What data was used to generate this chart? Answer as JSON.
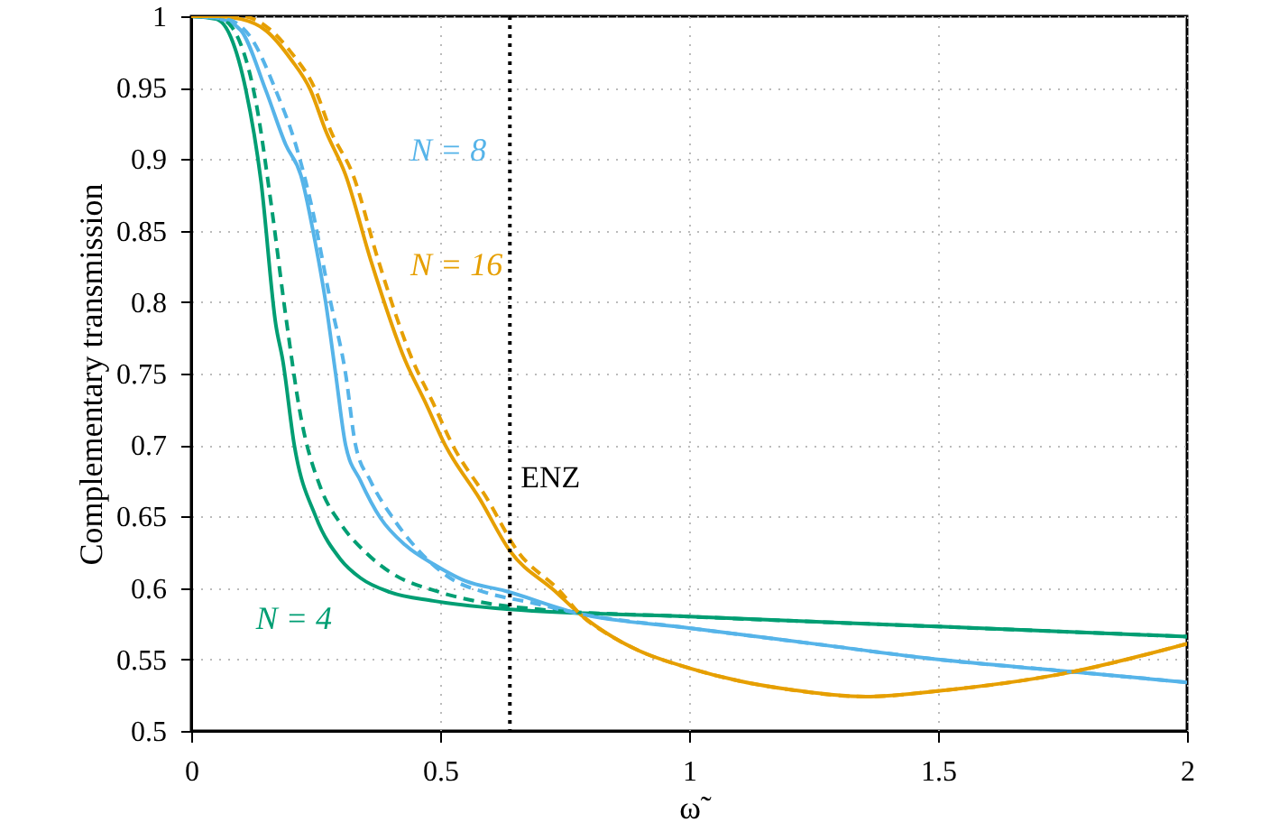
{
  "chart_data": {
    "type": "line",
    "xlabel": "ω̃",
    "ylabel": "Complementary transmission",
    "xlim": [
      0,
      2
    ],
    "ylim": [
      0.5,
      1
    ],
    "xticks": [
      0,
      0.5,
      1,
      1.5,
      2
    ],
    "yticks": [
      0.5,
      0.55,
      0.6,
      0.65,
      0.7,
      0.75,
      0.8,
      0.85,
      0.9,
      0.95,
      1
    ],
    "grid": true,
    "marker": "none",
    "series": [
      {
        "name": "N = 4",
        "color": "#009e73",
        "line_style": "solid",
        "x": [
          0,
          0.05,
          0.08,
          0.11,
          0.14,
          0.17,
          0.184,
          0.207,
          0.25,
          0.3,
          0.34,
          0.4,
          0.486,
          0.64,
          1,
          1.5,
          2
        ],
        "values": [
          1,
          0.998,
          0.985,
          0.948,
          0.885,
          0.784,
          0.759,
          0.7,
          0.65,
          0.62,
          0.607,
          0.597,
          0.591,
          0.585,
          0.58,
          0.573,
          0.566
        ]
      },
      {
        "name": "N = 8",
        "color": "#56b4e9",
        "line_style": "solid",
        "x": [
          0,
          0.06,
          0.1,
          0.15,
          0.19,
          0.22,
          0.25,
          0.27,
          0.29,
          0.31,
          0.34,
          0.38,
          0.43,
          0.49,
          0.55,
          0.63,
          0.78,
          1,
          1.25,
          1.5,
          1.75,
          2
        ],
        "values": [
          1,
          0.998,
          0.99,
          0.948,
          0.91,
          0.889,
          0.84,
          0.8,
          0.75,
          0.7,
          0.675,
          0.649,
          0.63,
          0.616,
          0.605,
          0.598,
          0.582,
          0.572,
          0.561,
          0.55,
          0.542,
          0.534
        ]
      },
      {
        "name": "N = 16",
        "color": "#e69f00",
        "line_style": "solid",
        "x": [
          0,
          0.05,
          0.1,
          0.15,
          0.2,
          0.24,
          0.27,
          0.31,
          0.36,
          0.43,
          0.47,
          0.51,
          0.58,
          0.64,
          0.73,
          0.78,
          0.85,
          0.9,
          1,
          1.1,
          1.2,
          1.355,
          1.5,
          1.75,
          2
        ],
        "values": [
          1,
          1,
          0.998,
          0.99,
          0.97,
          0.948,
          0.92,
          0.889,
          0.83,
          0.759,
          0.73,
          0.7,
          0.662,
          0.626,
          0.598,
          0.582,
          0.565,
          0.556,
          0.544,
          0.535,
          0.529,
          0.524,
          0.528,
          0.54,
          0.561
        ]
      },
      {
        "color": "#009e73",
        "line_style": "dashed",
        "x": [
          0,
          0.06,
          0.1,
          0.13,
          0.16,
          0.19,
          0.22,
          0.26,
          0.3,
          0.35,
          0.4,
          0.5,
          0.6,
          0.7,
          1,
          1.5,
          2
        ],
        "values": [
          1,
          0.998,
          0.98,
          0.94,
          0.87,
          0.79,
          0.72,
          0.67,
          0.645,
          0.625,
          0.611,
          0.597,
          0.589,
          0.585,
          0.58,
          0.573,
          0.566
        ]
      },
      {
        "color": "#56b4e9",
        "line_style": "dashed",
        "x": [
          0,
          0.07,
          0.12,
          0.17,
          0.21,
          0.24,
          0.28,
          0.31,
          0.33,
          0.36,
          0.405,
          0.46,
          0.52,
          0.6,
          0.68,
          0.78,
          1,
          1.25,
          1.5,
          1.75,
          2
        ],
        "values": [
          1,
          0.998,
          0.985,
          0.948,
          0.91,
          0.87,
          0.8,
          0.75,
          0.7,
          0.675,
          0.649,
          0.625,
          0.607,
          0.596,
          0.59,
          0.582,
          0.572,
          0.561,
          0.55,
          0.542,
          0.534
        ]
      },
      {
        "color": "#e69f00",
        "line_style": "dashed",
        "x": [
          0,
          0.1,
          0.15,
          0.2,
          0.25,
          0.28,
          0.325,
          0.375,
          0.445,
          0.485,
          0.525,
          0.595,
          0.655,
          0.74,
          0.78,
          0.85,
          0.9,
          1,
          1.1,
          1.2,
          1.355,
          1.5,
          1.75,
          2
        ],
        "values": [
          1,
          1,
          0.993,
          0.975,
          0.948,
          0.92,
          0.889,
          0.83,
          0.759,
          0.73,
          0.7,
          0.662,
          0.626,
          0.598,
          0.582,
          0.565,
          0.556,
          0.544,
          0.535,
          0.529,
          0.524,
          0.528,
          0.54,
          0.561
        ]
      }
    ],
    "ref_lines": [
      {
        "axis": "x",
        "value": 0.64,
        "label": "ENZ",
        "color": "#000000",
        "line_style": "dotted"
      }
    ]
  }
}
